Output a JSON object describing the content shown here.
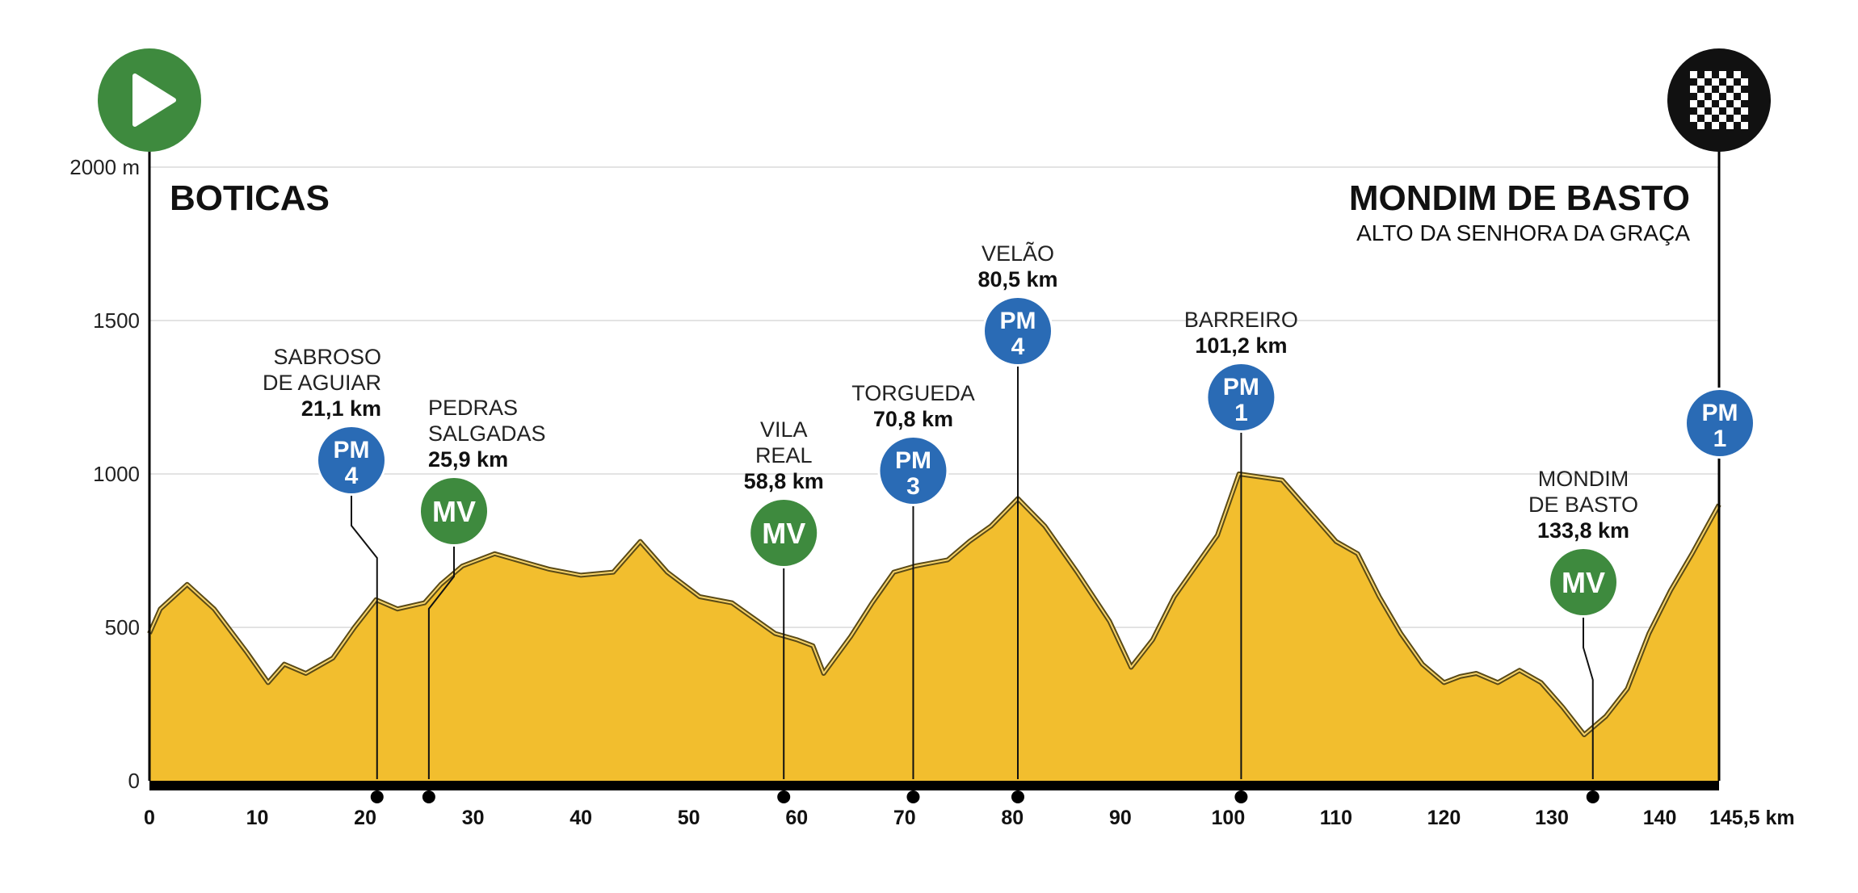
{
  "chart_data": {
    "type": "area",
    "start_label": "BOTICAS",
    "finish_label": "MONDIM DE BASTO",
    "finish_sublabel": "ALTO DA SENHORA DA GRAÇA",
    "y_unit_label": "2000 m",
    "y_ticks": [
      0,
      500,
      1000,
      1500,
      2000
    ],
    "y_tick_labels": [
      "0",
      "500",
      "1000",
      "1500",
      "2000 m"
    ],
    "ylim": [
      0,
      2000
    ],
    "x_ticks": [
      0,
      10,
      20,
      30,
      40,
      50,
      60,
      70,
      80,
      90,
      100,
      110,
      120,
      130,
      140
    ],
    "x_end_label": "145,5 km",
    "xlim": [
      0,
      145.5
    ],
    "grid": true,
    "profile": {
      "x": [
        0,
        1,
        3.5,
        6,
        9,
        11,
        12.5,
        14.5,
        17,
        19,
        21,
        23,
        25.5,
        27,
        29,
        32,
        35,
        37,
        40,
        43,
        45.5,
        48,
        51,
        54,
        56,
        58,
        60,
        61.5,
        62.5,
        65,
        67,
        69,
        71,
        74,
        76,
        78,
        80.5,
        83,
        86,
        89,
        91,
        93,
        95,
        97,
        99,
        101,
        103,
        105,
        107,
        110,
        112,
        114,
        116,
        118,
        120,
        121.5,
        123,
        125,
        127,
        129,
        131,
        133,
        135,
        137,
        139,
        141,
        143,
        145.5
      ],
      "elevation": [
        480,
        560,
        640,
        560,
        420,
        320,
        380,
        350,
        400,
        500,
        590,
        560,
        580,
        640,
        700,
        740,
        710,
        690,
        670,
        680,
        780,
        680,
        600,
        580,
        530,
        480,
        460,
        440,
        350,
        470,
        580,
        680,
        700,
        720,
        780,
        830,
        920,
        830,
        680,
        520,
        370,
        460,
        600,
        700,
        800,
        1000,
        990,
        980,
        900,
        780,
        740,
        600,
        480,
        380,
        320,
        340,
        350,
        320,
        360,
        320,
        240,
        150,
        210,
        300,
        480,
        620,
        740,
        900
      ]
    },
    "points": [
      {
        "km": 21.1,
        "elevation": 590,
        "name": "SABROSO DE AGUIAR",
        "name_lines": [
          "SABROSO",
          "DE AGUIAR"
        ],
        "km_label": "21,1 km",
        "badge_lines": [
          "PM",
          "4"
        ],
        "badge_type": "PM"
      },
      {
        "km": 25.9,
        "elevation": 585,
        "name": "PEDRAS SALGADAS",
        "name_lines": [
          "PEDRAS",
          "SALGADAS"
        ],
        "km_label": "25,9 km",
        "badge_lines": [
          "MV"
        ],
        "badge_type": "MV"
      },
      {
        "km": 58.8,
        "elevation": 470,
        "name": "VILA REAL",
        "name_lines": [
          "VILA",
          "REAL"
        ],
        "km_label": "58,8 km",
        "badge_lines": [
          "MV"
        ],
        "badge_type": "MV"
      },
      {
        "km": 70.8,
        "elevation": 700,
        "name": "TORGUEDA",
        "name_lines": [
          "TORGUEDA"
        ],
        "km_label": "70,8 km",
        "badge_lines": [
          "PM",
          "3"
        ],
        "badge_type": "PM"
      },
      {
        "km": 80.5,
        "elevation": 920,
        "name": "VELÃO",
        "name_lines": [
          "VELÃO"
        ],
        "km_label": "80,5 km",
        "badge_lines": [
          "PM",
          "4"
        ],
        "badge_type": "PM"
      },
      {
        "km": 101.2,
        "elevation": 1000,
        "name": "BARREIRO",
        "name_lines": [
          "BARREIRO"
        ],
        "km_label": "101,2 km",
        "badge_lines": [
          "PM",
          "1"
        ],
        "badge_type": "PM"
      },
      {
        "km": 133.8,
        "elevation": 150,
        "name": "MONDIM DE BASTO",
        "name_lines": [
          "MONDIM",
          "DE BASTO"
        ],
        "km_label": "133,8 km",
        "badge_lines": [
          "MV"
        ],
        "badge_type": "MV"
      },
      {
        "km": 145.5,
        "elevation": 900,
        "name": "",
        "name_lines": [],
        "km_label": "",
        "badge_lines": [
          "PM",
          "1"
        ],
        "badge_type": "PM"
      }
    ],
    "colors": {
      "profile_fill": "#F2BE2E",
      "profile_stroke": "#5A4A16",
      "pm_badge": "#2A6BB5",
      "mv_badge": "#3E8A3E",
      "start_icon": "#3E8A3E",
      "finish_icon": "#111111",
      "axis": "#000000",
      "grid": "#E3E3E3"
    },
    "icons": {
      "start": "play-icon",
      "finish": "checkered-flag-icon"
    }
  }
}
